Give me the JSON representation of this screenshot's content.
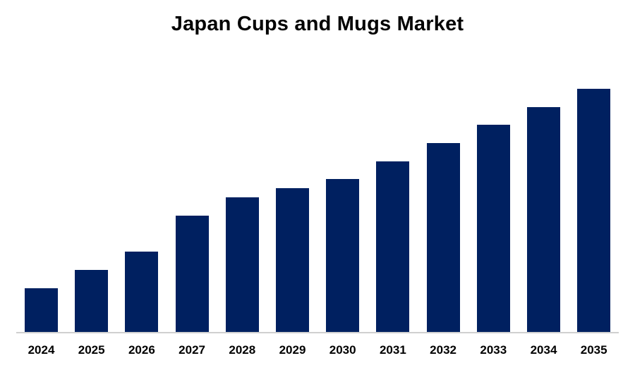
{
  "chart_data": {
    "type": "bar",
    "title": "Japan Cups and Mugs Market",
    "xlabel": "",
    "ylabel": "",
    "categories": [
      "2024",
      "2025",
      "2026",
      "2027",
      "2028",
      "2029",
      "2030",
      "2031",
      "2032",
      "2033",
      "2034",
      "2035"
    ],
    "values": [
      63,
      89,
      115,
      166,
      192,
      205,
      218,
      243,
      269,
      295,
      320,
      346
    ],
    "value_units": "relative bar height (no y-axis shown)",
    "ylim": [
      0,
      392
    ],
    "grid": false,
    "legend": null,
    "bar_color": "#002060"
  }
}
